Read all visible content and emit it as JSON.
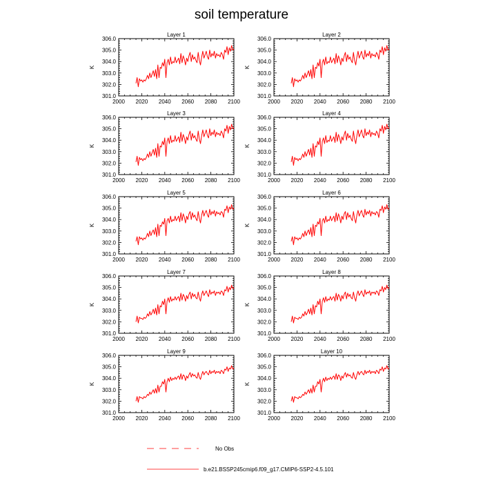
{
  "chart_data": {
    "type": "line",
    "title": "soil temperature",
    "ylabel": "K",
    "xlim": [
      2000,
      2100
    ],
    "ylim": [
      301.0,
      306.0
    ],
    "xticks": [
      "2000",
      "2020",
      "2040",
      "2060",
      "2080",
      "2100"
    ],
    "yticks": [
      "301.0",
      "302.0",
      "303.0",
      "304.0",
      "305.0",
      "306.0"
    ],
    "x": [
      2015,
      2016,
      2017,
      2018,
      2019,
      2020,
      2021,
      2022,
      2023,
      2024,
      2025,
      2026,
      2027,
      2028,
      2029,
      2030,
      2031,
      2032,
      2033,
      2034,
      2035,
      2036,
      2037,
      2038,
      2039,
      2040,
      2041,
      2042,
      2043,
      2044,
      2045,
      2046,
      2047,
      2048,
      2049,
      2050,
      2051,
      2052,
      2053,
      2054,
      2055,
      2056,
      2057,
      2058,
      2059,
      2060,
      2061,
      2062,
      2063,
      2064,
      2065,
      2066,
      2067,
      2068,
      2069,
      2070,
      2071,
      2072,
      2073,
      2074,
      2075,
      2076,
      2077,
      2078,
      2079,
      2080,
      2081,
      2082,
      2083,
      2084,
      2085,
      2086,
      2087,
      2088,
      2089,
      2090,
      2091,
      2092,
      2093,
      2094,
      2095,
      2096,
      2097,
      2098,
      2099,
      2100
    ],
    "panels": [
      {
        "title": "Layer 1",
        "values": [
          302.1,
          302.6,
          301.8,
          302.5,
          302.3,
          302.4,
          302.2,
          302.4,
          302.3,
          302.5,
          302.8,
          302.5,
          303.0,
          302.6,
          302.9,
          303.2,
          302.7,
          303.3,
          302.5,
          303.7,
          302.6,
          303.5,
          303.4,
          303.9,
          303.6,
          304.2,
          302.6,
          303.9,
          304.2,
          303.7,
          304.4,
          303.8,
          304.0,
          303.9,
          304.4,
          303.9,
          304.1,
          304.3,
          303.8,
          304.7,
          303.9,
          304.5,
          304.2,
          303.7,
          304.3,
          304.0,
          304.5,
          304.8,
          304.0,
          304.6,
          304.2,
          304.4,
          304.1,
          303.9,
          304.8,
          304.1,
          303.7,
          304.4,
          304.9,
          304.3,
          304.6,
          304.9,
          304.4,
          304.2,
          305.0,
          304.4,
          304.7,
          304.5,
          304.9,
          304.3,
          304.7,
          304.5,
          304.6,
          304.4,
          304.8,
          304.6,
          304.2,
          305.0,
          304.8,
          305.3,
          304.6,
          305.2,
          304.9,
          305.4,
          305.0,
          305.1
        ]
      },
      {
        "title": "Layer 2",
        "values": [
          302.1,
          302.6,
          301.8,
          302.5,
          302.3,
          302.4,
          302.2,
          302.4,
          302.3,
          302.5,
          302.8,
          302.5,
          303.0,
          302.6,
          302.9,
          303.2,
          302.7,
          303.3,
          302.5,
          303.7,
          302.6,
          303.5,
          303.4,
          303.9,
          303.6,
          304.2,
          302.6,
          303.9,
          304.2,
          303.7,
          304.4,
          303.8,
          304.0,
          303.9,
          304.4,
          303.9,
          304.1,
          304.3,
          303.8,
          304.7,
          303.9,
          304.5,
          304.2,
          303.7,
          304.3,
          304.0,
          304.5,
          304.8,
          304.0,
          304.6,
          304.2,
          304.4,
          304.1,
          303.9,
          304.8,
          304.1,
          303.7,
          304.4,
          304.9,
          304.3,
          304.6,
          304.9,
          304.4,
          304.2,
          305.0,
          304.4,
          304.7,
          304.5,
          304.9,
          304.3,
          304.7,
          304.5,
          304.6,
          304.4,
          304.8,
          304.6,
          304.2,
          305.0,
          304.8,
          305.3,
          304.6,
          305.2,
          304.9,
          305.4,
          305.0,
          305.1
        ]
      },
      {
        "title": "Layer 3",
        "values": [
          302.1,
          302.6,
          301.8,
          302.5,
          302.3,
          302.4,
          302.2,
          302.4,
          302.3,
          302.5,
          302.8,
          302.5,
          303.0,
          302.6,
          302.9,
          303.2,
          302.7,
          303.3,
          302.5,
          303.7,
          302.6,
          303.5,
          303.4,
          303.9,
          303.6,
          304.2,
          302.6,
          303.9,
          304.2,
          303.7,
          304.4,
          303.8,
          304.0,
          303.9,
          304.4,
          303.9,
          304.1,
          304.3,
          303.8,
          304.7,
          303.9,
          304.5,
          304.2,
          303.7,
          304.3,
          304.0,
          304.5,
          304.8,
          304.0,
          304.6,
          304.2,
          304.4,
          304.1,
          303.9,
          304.8,
          304.1,
          303.7,
          304.4,
          304.9,
          304.3,
          304.6,
          304.9,
          304.4,
          304.2,
          305.0,
          304.4,
          304.7,
          304.5,
          304.9,
          304.3,
          304.7,
          304.5,
          304.6,
          304.4,
          304.8,
          304.6,
          304.2,
          305.0,
          304.8,
          305.3,
          304.6,
          305.2,
          304.9,
          305.4,
          305.0,
          305.1
        ]
      },
      {
        "title": "Layer 4",
        "values": [
          302.1,
          302.6,
          301.8,
          302.5,
          302.3,
          302.4,
          302.2,
          302.4,
          302.3,
          302.5,
          302.8,
          302.5,
          303.0,
          302.6,
          302.9,
          303.2,
          302.7,
          303.3,
          302.5,
          303.7,
          302.6,
          303.5,
          303.4,
          303.9,
          303.6,
          304.2,
          302.6,
          303.9,
          304.2,
          303.7,
          304.4,
          303.8,
          304.0,
          303.9,
          304.4,
          303.9,
          304.1,
          304.3,
          303.8,
          304.7,
          303.9,
          304.5,
          304.2,
          303.7,
          304.3,
          304.0,
          304.5,
          304.8,
          304.0,
          304.6,
          304.2,
          304.4,
          304.1,
          303.9,
          304.8,
          304.1,
          303.7,
          304.4,
          304.9,
          304.3,
          304.6,
          304.9,
          304.4,
          304.2,
          305.0,
          304.4,
          304.7,
          304.5,
          304.9,
          304.3,
          304.7,
          304.5,
          304.6,
          304.4,
          304.8,
          304.6,
          304.2,
          305.0,
          304.8,
          305.3,
          304.6,
          305.2,
          304.9,
          305.4,
          305.0,
          305.1
        ]
      },
      {
        "title": "Layer 5",
        "values": [
          302.1,
          302.5,
          301.8,
          302.5,
          302.3,
          302.4,
          302.2,
          302.4,
          302.3,
          302.5,
          302.8,
          302.5,
          303.0,
          302.6,
          302.9,
          303.1,
          302.7,
          303.3,
          302.5,
          303.6,
          302.6,
          303.5,
          303.4,
          303.8,
          303.6,
          304.1,
          302.6,
          303.9,
          304.1,
          303.7,
          304.3,
          303.8,
          304.0,
          303.9,
          304.3,
          303.9,
          304.1,
          304.3,
          303.8,
          304.6,
          303.9,
          304.5,
          304.2,
          303.7,
          304.3,
          304.0,
          304.5,
          304.7,
          304.0,
          304.6,
          304.2,
          304.4,
          304.1,
          303.9,
          304.7,
          304.1,
          303.7,
          304.4,
          304.8,
          304.3,
          304.6,
          304.8,
          304.4,
          304.2,
          304.9,
          304.4,
          304.7,
          304.5,
          304.8,
          304.3,
          304.7,
          304.5,
          304.6,
          304.4,
          304.7,
          304.6,
          304.2,
          304.9,
          304.8,
          305.2,
          304.6,
          305.1,
          304.9,
          305.3,
          304.9,
          305.0
        ]
      },
      {
        "title": "Layer 6",
        "values": [
          302.1,
          302.5,
          301.8,
          302.5,
          302.3,
          302.4,
          302.2,
          302.4,
          302.3,
          302.5,
          302.8,
          302.5,
          303.0,
          302.6,
          302.9,
          303.1,
          302.7,
          303.3,
          302.5,
          303.6,
          302.6,
          303.5,
          303.4,
          303.8,
          303.6,
          304.1,
          302.6,
          303.9,
          304.1,
          303.7,
          304.3,
          303.8,
          304.0,
          303.9,
          304.3,
          303.9,
          304.1,
          304.3,
          303.8,
          304.6,
          303.9,
          304.5,
          304.2,
          303.7,
          304.3,
          304.0,
          304.5,
          304.7,
          304.0,
          304.6,
          304.2,
          304.4,
          304.1,
          303.9,
          304.7,
          304.1,
          303.7,
          304.4,
          304.8,
          304.3,
          304.6,
          304.8,
          304.4,
          304.2,
          304.9,
          304.4,
          304.7,
          304.5,
          304.8,
          304.3,
          304.7,
          304.5,
          304.6,
          304.4,
          304.7,
          304.6,
          304.2,
          304.9,
          304.8,
          305.2,
          304.6,
          305.1,
          304.9,
          305.3,
          304.9,
          305.0
        ]
      },
      {
        "title": "Layer 7",
        "values": [
          302.0,
          302.5,
          301.9,
          302.4,
          302.3,
          302.3,
          302.2,
          302.4,
          302.3,
          302.4,
          302.7,
          302.5,
          302.9,
          302.6,
          302.8,
          303.1,
          302.7,
          303.2,
          302.6,
          303.5,
          302.7,
          303.4,
          303.3,
          303.8,
          303.5,
          304.0,
          302.7,
          303.8,
          304.1,
          303.7,
          304.2,
          303.8,
          304.0,
          303.9,
          304.2,
          303.9,
          304.1,
          304.2,
          303.8,
          304.5,
          303.9,
          304.4,
          304.2,
          303.8,
          304.3,
          304.0,
          304.4,
          304.6,
          304.0,
          304.5,
          304.2,
          304.4,
          304.1,
          304.0,
          304.6,
          304.1,
          303.8,
          304.4,
          304.7,
          304.3,
          304.5,
          304.7,
          304.4,
          304.2,
          304.8,
          304.4,
          304.6,
          304.5,
          304.7,
          304.3,
          304.6,
          304.5,
          304.6,
          304.4,
          304.7,
          304.6,
          304.3,
          304.8,
          304.7,
          305.1,
          304.6,
          305.0,
          304.8,
          305.2,
          304.9,
          305.0
        ]
      },
      {
        "title": "Layer 8",
        "values": [
          302.0,
          302.5,
          301.9,
          302.4,
          302.3,
          302.3,
          302.2,
          302.4,
          302.3,
          302.4,
          302.7,
          302.5,
          302.9,
          302.6,
          302.8,
          303.1,
          302.7,
          303.2,
          302.6,
          303.5,
          302.7,
          303.4,
          303.3,
          303.8,
          303.5,
          304.0,
          302.7,
          303.8,
          304.1,
          303.7,
          304.2,
          303.8,
          304.0,
          303.9,
          304.2,
          303.9,
          304.1,
          304.2,
          303.8,
          304.5,
          303.9,
          304.4,
          304.2,
          303.8,
          304.3,
          304.0,
          304.4,
          304.6,
          304.0,
          304.5,
          304.2,
          304.4,
          304.1,
          304.0,
          304.6,
          304.1,
          303.8,
          304.4,
          304.7,
          304.3,
          304.5,
          304.7,
          304.4,
          304.2,
          304.8,
          304.4,
          304.6,
          304.5,
          304.7,
          304.3,
          304.6,
          304.5,
          304.6,
          304.4,
          304.7,
          304.6,
          304.3,
          304.8,
          304.7,
          305.1,
          304.6,
          305.0,
          304.8,
          305.2,
          304.9,
          305.0
        ]
      },
      {
        "title": "Layer 9",
        "values": [
          302.0,
          302.4,
          301.9,
          302.4,
          302.3,
          302.3,
          302.2,
          302.4,
          302.3,
          302.4,
          302.6,
          302.5,
          302.8,
          302.6,
          302.8,
          303.0,
          302.7,
          303.1,
          302.7,
          303.4,
          302.8,
          303.3,
          303.3,
          303.7,
          303.5,
          303.9,
          302.8,
          303.7,
          304.0,
          303.7,
          304.1,
          303.8,
          304.0,
          303.9,
          304.1,
          303.9,
          304.1,
          304.2,
          303.9,
          304.4,
          303.9,
          304.3,
          304.2,
          303.8,
          304.2,
          304.0,
          304.3,
          304.5,
          304.1,
          304.4,
          304.2,
          304.3,
          304.1,
          304.0,
          304.5,
          304.1,
          303.9,
          304.3,
          304.6,
          304.3,
          304.5,
          304.6,
          304.4,
          304.3,
          304.7,
          304.4,
          304.6,
          304.5,
          304.7,
          304.4,
          304.6,
          304.5,
          304.6,
          304.4,
          304.7,
          304.6,
          304.4,
          304.8,
          304.7,
          305.0,
          304.6,
          304.9,
          304.8,
          305.1,
          304.8,
          304.9
        ]
      },
      {
        "title": "Layer 10",
        "values": [
          302.0,
          302.4,
          301.9,
          302.4,
          302.3,
          302.3,
          302.2,
          302.4,
          302.3,
          302.4,
          302.6,
          302.5,
          302.8,
          302.6,
          302.8,
          303.0,
          302.7,
          303.1,
          302.7,
          303.4,
          302.8,
          303.3,
          303.3,
          303.7,
          303.5,
          303.9,
          302.8,
          303.7,
          304.0,
          303.7,
          304.1,
          303.8,
          304.0,
          303.9,
          304.1,
          303.9,
          304.1,
          304.2,
          303.9,
          304.4,
          303.9,
          304.3,
          304.2,
          303.8,
          304.2,
          304.0,
          304.3,
          304.5,
          304.1,
          304.4,
          304.2,
          304.3,
          304.1,
          304.0,
          304.5,
          304.1,
          303.9,
          304.3,
          304.6,
          304.3,
          304.5,
          304.6,
          304.4,
          304.3,
          304.7,
          304.4,
          304.6,
          304.5,
          304.7,
          304.4,
          304.6,
          304.5,
          304.6,
          304.4,
          304.7,
          304.6,
          304.4,
          304.8,
          304.7,
          305.0,
          304.6,
          304.9,
          304.8,
          305.1,
          304.8,
          304.9
        ]
      }
    ],
    "series_color": "#ff0000",
    "legend": [
      {
        "label": "No Obs",
        "style": "dashed",
        "color": "#ff0000"
      },
      {
        "label": "b.e21.BSSP245cmip6.f09_g17.CMIP6-SSP2-4.5.101",
        "style": "solid",
        "color": "#ff0000"
      }
    ]
  }
}
